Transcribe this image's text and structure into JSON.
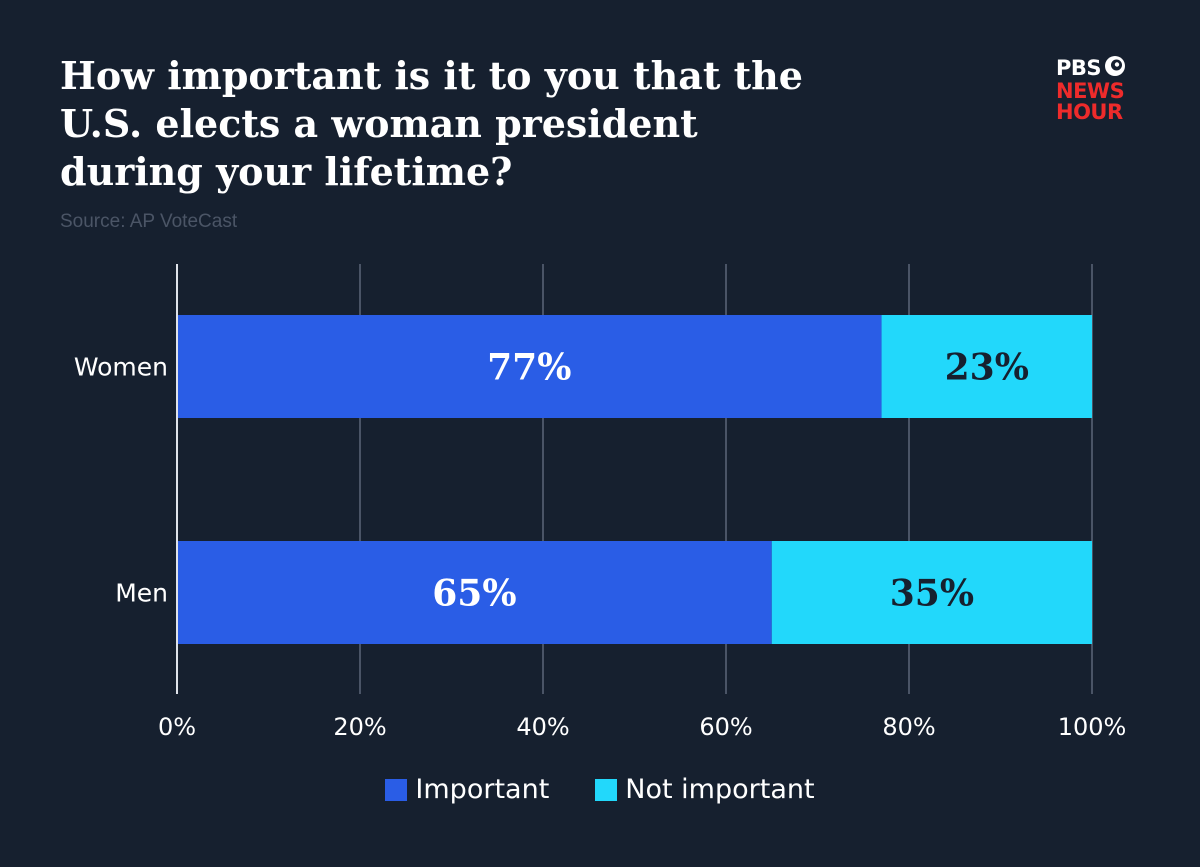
{
  "header": {
    "title": "How important is it to you that the U.S. elects a woman president during your lifetime?",
    "source": "Source: AP VoteCast"
  },
  "logo": {
    "line1": "PBS",
    "line2": "NEWS",
    "line3": "HOUR",
    "icon": "pbs-head-icon"
  },
  "colors": {
    "background": "#16202f",
    "important": "#2a5de6",
    "not_important": "#22d8fb",
    "gridline": "#4a5466",
    "axis": "#dfe3ea",
    "logo_red": "#ee2b2b"
  },
  "chart_data": {
    "type": "bar",
    "orientation": "horizontal",
    "stacked": true,
    "title": "How important is it to you that the U.S. elects a woman president during your lifetime?",
    "categories": [
      "Women",
      "Men"
    ],
    "series": [
      {
        "name": "Important",
        "values": [
          77,
          65
        ],
        "labels": [
          "77%",
          "65%"
        ]
      },
      {
        "name": "Not important",
        "values": [
          23,
          35
        ],
        "labels": [
          "23%",
          "35%"
        ]
      }
    ],
    "xlim": [
      0,
      100
    ],
    "xticks": [
      0,
      20,
      40,
      60,
      80,
      100
    ],
    "xtick_labels": [
      "0%",
      "20%",
      "40%",
      "60%",
      "80%",
      "100%"
    ],
    "grid": "vertical",
    "legend": "bottom"
  }
}
